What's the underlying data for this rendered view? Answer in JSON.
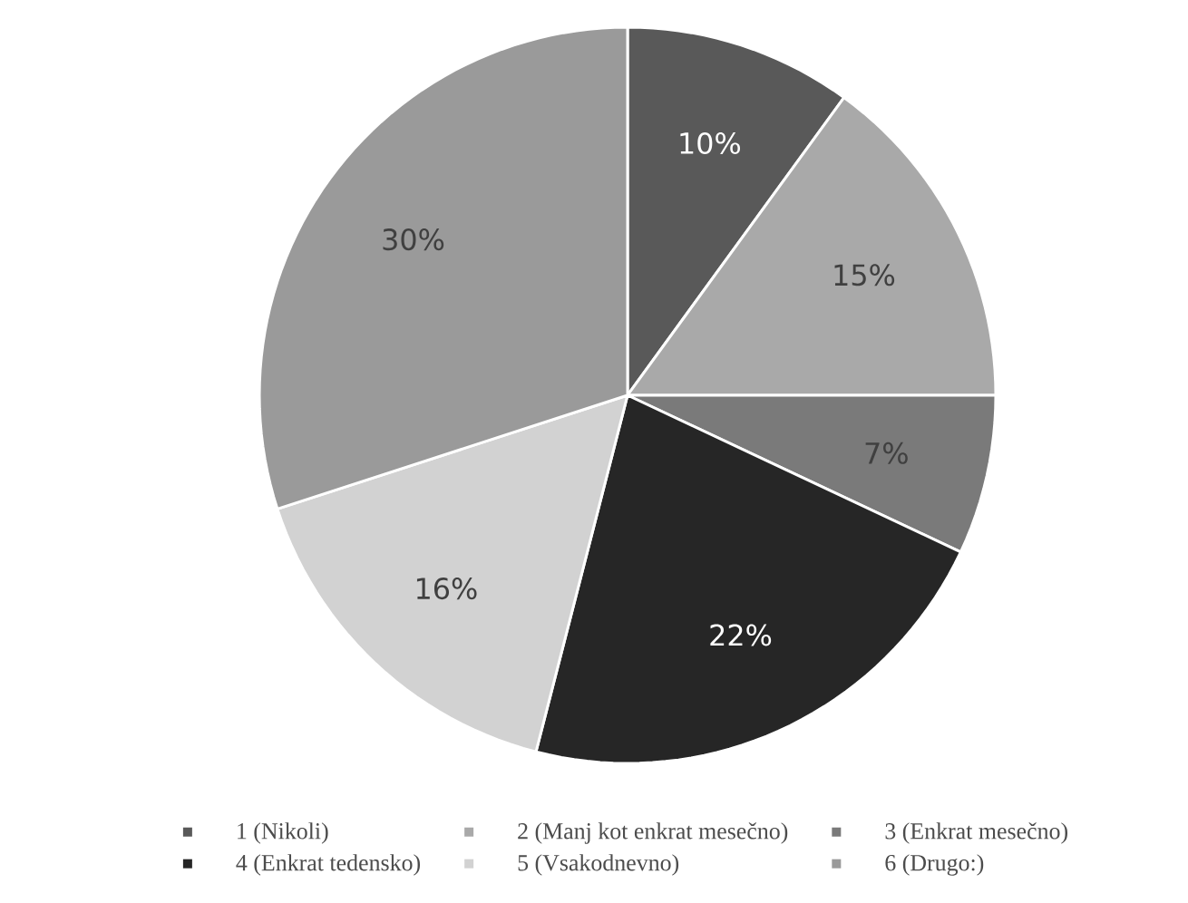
{
  "chart_data": {
    "type": "pie",
    "categories": [
      "1 (Nikoli)",
      "2 (Manj kot enkrat mesečno)",
      "3 (Enkrat mesečno)",
      "4 (Enkrat tedensko)",
      "5 (Vsakodnevno)",
      "6 (Drugo:)"
    ],
    "values": [
      10,
      15,
      7,
      22,
      16,
      30
    ],
    "value_labels": [
      "10%",
      "15%",
      "7%",
      "22%",
      "16%",
      "30%"
    ],
    "colors": [
      "#595959",
      "#a9a9a9",
      "#7a7a7a",
      "#262626",
      "#d2d2d2",
      "#9a9a9a"
    ],
    "legend": "bottom"
  }
}
